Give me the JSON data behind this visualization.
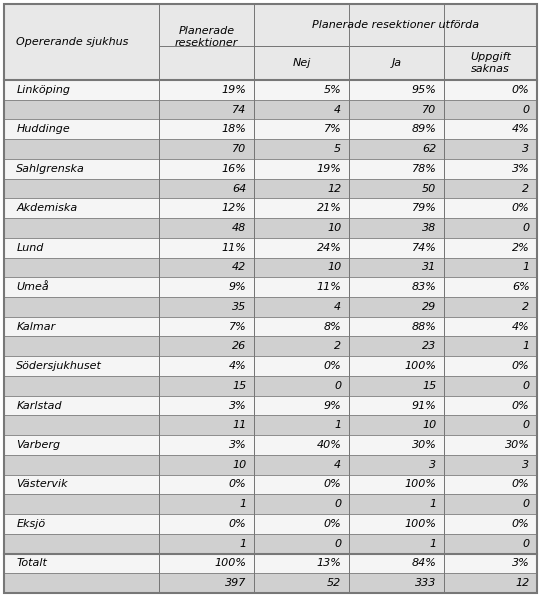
{
  "col_header2": "Planerade resektioner utförda",
  "col0_header": "Opererande sjukhus",
  "col1_header": "Planerade\nresektioner",
  "sub_headers": [
    "Nej",
    "Ja",
    "Uppgift\nsaknas"
  ],
  "rows": [
    [
      "Linköping",
      "19%",
      "5%",
      "95%",
      "0%"
    ],
    [
      "",
      "74",
      "4",
      "70",
      "0"
    ],
    [
      "Huddinge",
      "18%",
      "7%",
      "89%",
      "4%"
    ],
    [
      "",
      "70",
      "5",
      "62",
      "3"
    ],
    [
      "Sahlgrenska",
      "16%",
      "19%",
      "78%",
      "3%"
    ],
    [
      "",
      "64",
      "12",
      "50",
      "2"
    ],
    [
      "Akdemiska",
      "12%",
      "21%",
      "79%",
      "0%"
    ],
    [
      "",
      "48",
      "10",
      "38",
      "0"
    ],
    [
      "Lund",
      "11%",
      "24%",
      "74%",
      "2%"
    ],
    [
      "",
      "42",
      "10",
      "31",
      "1"
    ],
    [
      "Umeå",
      "9%",
      "11%",
      "83%",
      "6%"
    ],
    [
      "",
      "35",
      "4",
      "29",
      "2"
    ],
    [
      "Kalmar",
      "7%",
      "8%",
      "88%",
      "4%"
    ],
    [
      "",
      "26",
      "2",
      "23",
      "1"
    ],
    [
      "Södersjukhuset",
      "4%",
      "0%",
      "100%",
      "0%"
    ],
    [
      "",
      "15",
      "0",
      "15",
      "0"
    ],
    [
      "Karlstad",
      "3%",
      "9%",
      "91%",
      "0%"
    ],
    [
      "",
      "11",
      "1",
      "10",
      "0"
    ],
    [
      "Varberg",
      "3%",
      "40%",
      "30%",
      "30%"
    ],
    [
      "",
      "10",
      "4",
      "3",
      "3"
    ],
    [
      "Västervik",
      "0%",
      "0%",
      "100%",
      "0%"
    ],
    [
      "",
      "1",
      "0",
      "1",
      "0"
    ],
    [
      "Eksjö",
      "0%",
      "0%",
      "100%",
      "0%"
    ],
    [
      "",
      "1",
      "0",
      "1",
      "0"
    ],
    [
      "Totalt",
      "100%",
      "13%",
      "84%",
      "3%"
    ],
    [
      "",
      "397",
      "52",
      "333",
      "12"
    ]
  ],
  "bg_white": "#f5f5f5",
  "bg_light_gray": "#e8e8e8",
  "bg_gray": "#d0d0d0",
  "border_color": "#777777",
  "text_color": "#000000",
  "font_size": 8.0,
  "header_font_size": 8.0,
  "fig_width": 5.41,
  "fig_height": 5.97,
  "dpi": 100
}
